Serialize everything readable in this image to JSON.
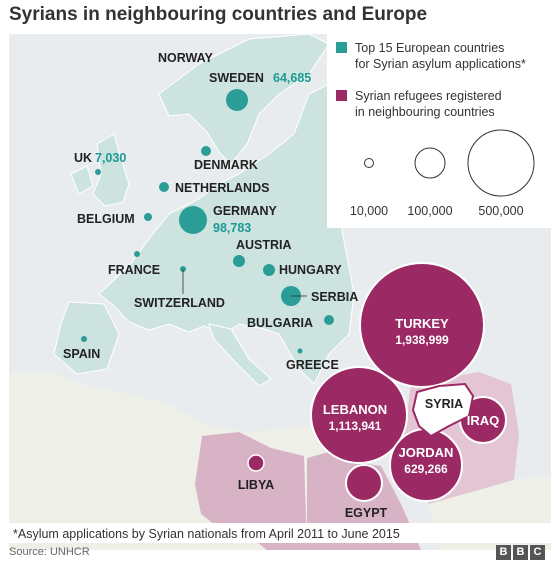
{
  "title": "Syrians in neighbouring countries and Europe",
  "legend": {
    "europe_label": "Top 15 European countries for Syrian asylum applications*",
    "europe_line1": "Top 15 European countries",
    "europe_line2": "for Syrian asylum applications*",
    "refugee_label": "Syrian refugees registered in neighbouring countries",
    "refugee_line1": "Syrian refugees registered",
    "refugee_line2": "in neighbouring countries",
    "sizes": [
      "10,000",
      "100,000",
      "500,000"
    ],
    "colors": {
      "europe": "#2a9d96",
      "refugees": "#9b2a64"
    }
  },
  "europe": {
    "norway": {
      "name": "NORWAY"
    },
    "sweden": {
      "name": "SWEDEN",
      "value": "64,685"
    },
    "uk": {
      "name": "UK",
      "value": "7,030"
    },
    "denmark": {
      "name": "DENMARK"
    },
    "netherlands": {
      "name": "NETHERLANDS"
    },
    "belgium": {
      "name": "BELGIUM"
    },
    "germany": {
      "name": "GERMANY",
      "value": "98,783"
    },
    "austria": {
      "name": "AUSTRIA"
    },
    "france": {
      "name": "FRANCE"
    },
    "hungary": {
      "name": "HUNGARY"
    },
    "switzerland": {
      "name": "SWITZERLAND"
    },
    "serbia": {
      "name": "SERBIA"
    },
    "bulgaria": {
      "name": "BULGARIA"
    },
    "spain": {
      "name": "SPAIN"
    },
    "greece": {
      "name": "GREECE"
    }
  },
  "neighbours": {
    "turkey": {
      "name": "TURKEY",
      "value": "1,938,999"
    },
    "lebanon": {
      "name": "LEBANON",
      "value": "1,113,941"
    },
    "jordan": {
      "name": "JORDAN",
      "value": "629,266"
    },
    "iraq": {
      "name": "IRAQ"
    },
    "egypt": {
      "name": "EGYPT"
    },
    "libya": {
      "name": "LIBYA"
    },
    "syria": {
      "name": "SYRIA"
    }
  },
  "footnote": "*Asylum applications by Syrian nationals from April 2011 to June 2015",
  "source": "Source: UNHCR",
  "logo_letters": [
    "B",
    "B",
    "C"
  ]
}
